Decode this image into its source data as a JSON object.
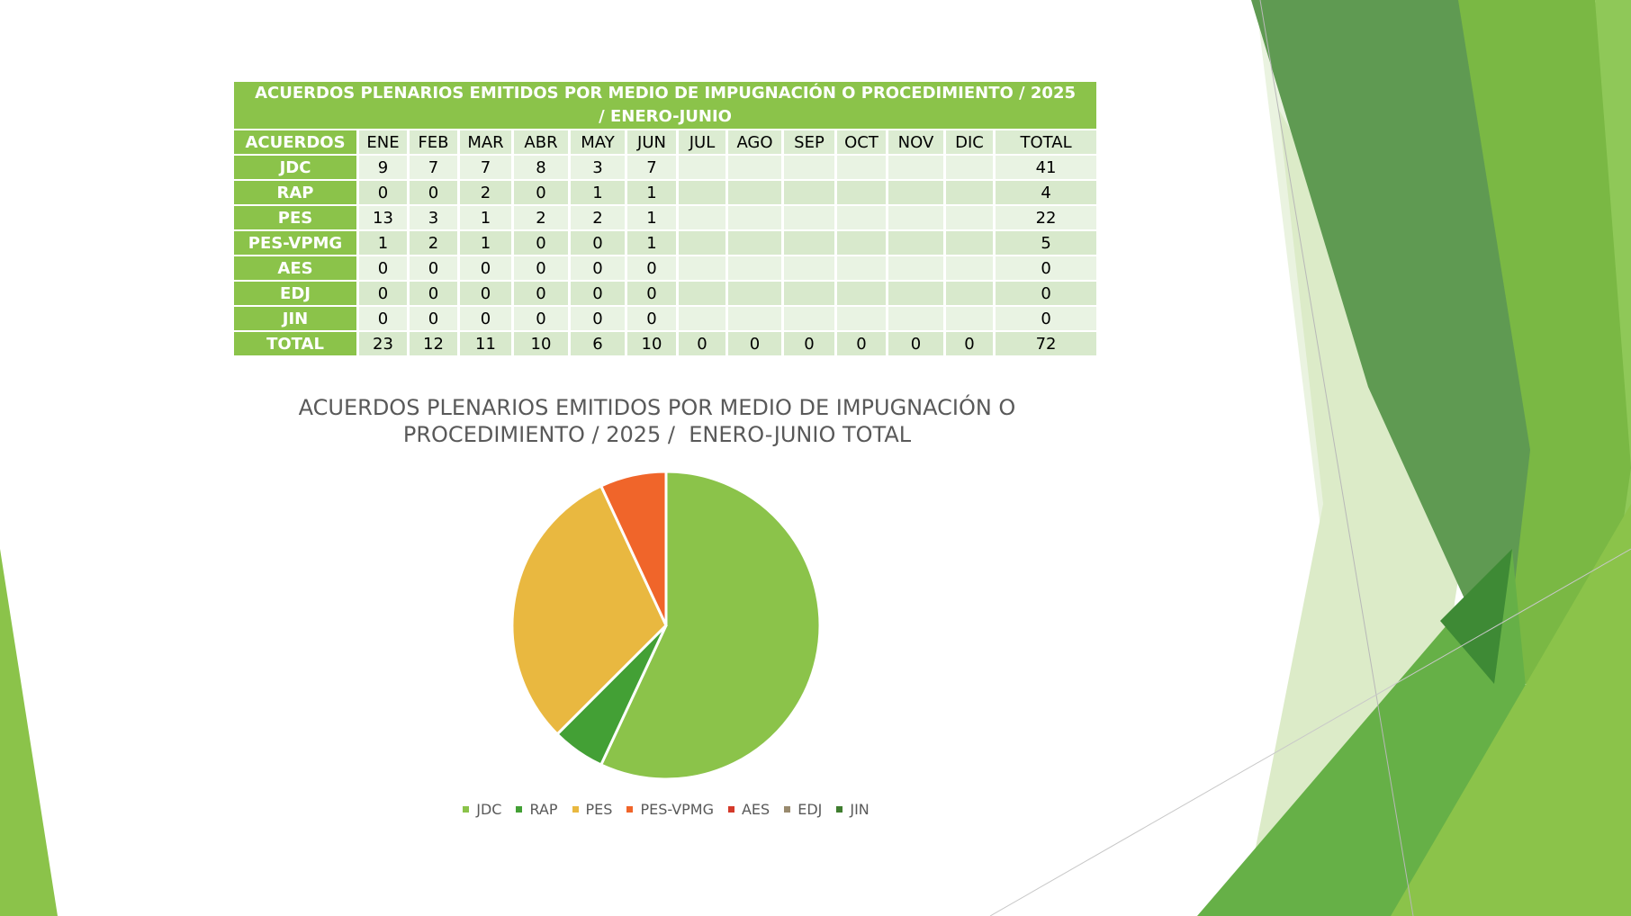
{
  "table": {
    "title": "ACUERDOS PLENARIOS EMITIDOS POR MEDIO DE IMPUGNACIÓN O PROCEDIMIENTO / 2025 / ENERO-JUNIO",
    "header_label": "ACUERDOS",
    "columns": [
      "ENE",
      "FEB",
      "MAR",
      "ABR",
      "MAY",
      "JUN",
      "JUL",
      "AGO",
      "SEP",
      "OCT",
      "NOV",
      "DIC",
      "TOTAL"
    ],
    "rows": [
      {
        "label": "JDC",
        "values": [
          "9",
          "7",
          "7",
          "8",
          "3",
          "7",
          "",
          "",
          "",
          "",
          "",
          "",
          "41"
        ]
      },
      {
        "label": "RAP",
        "values": [
          "0",
          "0",
          "2",
          "0",
          "1",
          "1",
          "",
          "",
          "",
          "",
          "",
          "",
          "4"
        ]
      },
      {
        "label": "PES",
        "values": [
          "13",
          "3",
          "1",
          "2",
          "2",
          "1",
          "",
          "",
          "",
          "",
          "",
          "",
          "22"
        ]
      },
      {
        "label": "PES-VPMG",
        "values": [
          "1",
          "2",
          "1",
          "0",
          "0",
          "1",
          "",
          "",
          "",
          "",
          "",
          "",
          "5"
        ]
      },
      {
        "label": "AES",
        "values": [
          "0",
          "0",
          "0",
          "0",
          "0",
          "0",
          "",
          "",
          "",
          "",
          "",
          "",
          "0"
        ]
      },
      {
        "label": "EDJ",
        "values": [
          "0",
          "0",
          "0",
          "0",
          "0",
          "0",
          "",
          "",
          "",
          "",
          "",
          "",
          "0"
        ]
      },
      {
        "label": "JIN",
        "values": [
          "0",
          "0",
          "0",
          "0",
          "0",
          "0",
          "",
          "",
          "",
          "",
          "",
          "",
          "0"
        ]
      },
      {
        "label": "TOTAL",
        "values": [
          "23",
          "12",
          "11",
          "10",
          "6",
          "10",
          "0",
          "0",
          "0",
          "0",
          "0",
          "0",
          "72"
        ]
      }
    ]
  },
  "chart_data": {
    "type": "pie",
    "title": "ACUERDOS PLENARIOS EMITIDOS POR MEDIO DE IMPUGNACIÓN O\nPROCEDIMIENTO / 2025 /  ENERO-JUNIO TOTAL",
    "categories": [
      "JDC",
      "RAP",
      "PES",
      "PES-VPMG",
      "AES",
      "EDJ",
      "JIN"
    ],
    "values": [
      41,
      4,
      22,
      5,
      0,
      0,
      0
    ],
    "colors": [
      "#8bc34a",
      "#43a035",
      "#e9b840",
      "#f0652a",
      "#d43a2a",
      "#998a6e",
      "#3f7d2f"
    ],
    "legend": "bottom"
  },
  "decor_colors": {
    "dark_green": "#5f9a52",
    "mid_green": "#7ab844",
    "light_green": "#dcebc8",
    "pale_green": "#c7e0a8",
    "bright_green": "#66b047"
  }
}
